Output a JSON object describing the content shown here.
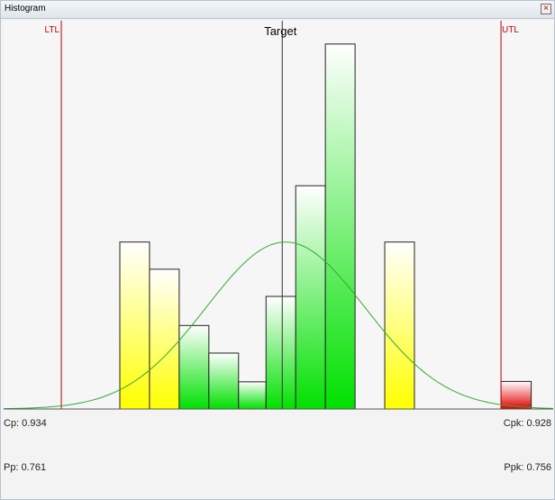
{
  "window": {
    "title": "Histogram",
    "close_icon": "close-icon"
  },
  "chart_data": {
    "type": "bar",
    "title": "",
    "xlabel": "",
    "ylabel": "",
    "xlim": [
      0,
      100
    ],
    "ylim": [
      0,
      100
    ],
    "bins": [
      {
        "x0": 21.15,
        "x1": 26.55,
        "value": 43,
        "zone": "warn"
      },
      {
        "x0": 26.55,
        "x1": 31.95,
        "value": 36,
        "zone": "warn"
      },
      {
        "x0": 31.95,
        "x1": 37.35,
        "value": 21.5,
        "zone": "ok"
      },
      {
        "x0": 37.35,
        "x1": 42.75,
        "value": 14.4,
        "zone": "ok"
      },
      {
        "x0": 42.75,
        "x1": 47.75,
        "value": 7,
        "zone": "ok"
      },
      {
        "x0": 47.75,
        "x1": 53.15,
        "value": 29,
        "zone": "ok"
      },
      {
        "x0": 53.15,
        "x1": 58.55,
        "value": 57.5,
        "zone": "ok"
      },
      {
        "x0": 58.55,
        "x1": 63.95,
        "value": 94,
        "zone": "ok"
      },
      {
        "x0": 69.35,
        "x1": 74.75,
        "value": 43,
        "zone": "warn"
      },
      {
        "x0": 90.5,
        "x1": 96.0,
        "value": 7.1,
        "zone": "out"
      }
    ],
    "curve": {
      "mean": 51.3,
      "sd": 14.5,
      "peak": 43
    },
    "lines": [
      {
        "name": "LTL",
        "x": 10.5,
        "color": "#cc0000"
      },
      {
        "name": "Target",
        "x": 50.7,
        "color": "#333333"
      },
      {
        "name": "UTL",
        "x": 90.5,
        "color": "#cc0000"
      }
    ],
    "grid": false,
    "colors": {
      "ok": "#00e000",
      "warn": "#ffff00",
      "out": "#e00000",
      "curve": "#33aa33"
    }
  },
  "stats": {
    "cp": "Cp: 0.934",
    "pp": "Pp: 0.761",
    "cpk": "Cpk: 0.928",
    "ppk": "Ppk: 0.756"
  }
}
